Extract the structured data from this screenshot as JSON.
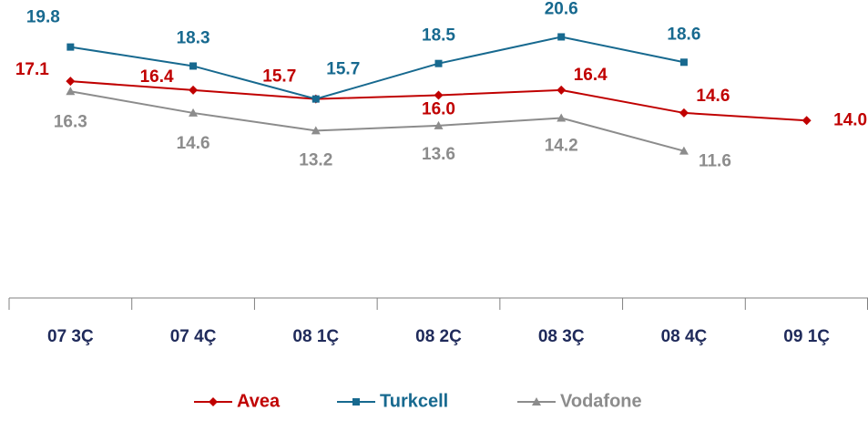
{
  "chart_data": {
    "type": "line",
    "categories": [
      "07 3Ç",
      "07 4Ç",
      "08 1Ç",
      "08 2Ç",
      "08 3Ç",
      "08 4Ç",
      "09 1Ç"
    ],
    "series": [
      {
        "name": "Avea",
        "color": "#c00000",
        "values": [
          17.1,
          16.4,
          15.7,
          16.0,
          16.4,
          14.6,
          14.0
        ],
        "value_labels": [
          "17.1",
          "16.4",
          "15.7",
          "16.0",
          "16.4",
          "14.6",
          "14.0"
        ]
      },
      {
        "name": "Turkcell",
        "color": "#17698f",
        "values": [
          19.8,
          18.3,
          15.7,
          18.5,
          20.6,
          18.6,
          null
        ],
        "value_labels": [
          "19.8",
          "18.3",
          "15.7",
          "18.5",
          "20.6",
          "18.6",
          null
        ]
      },
      {
        "name": "Vodafone",
        "color": "#8c8c8c",
        "values": [
          16.3,
          14.6,
          13.2,
          13.6,
          14.2,
          11.6,
          null
        ],
        "value_labels": [
          "16.3",
          "14.6",
          "13.2",
          "13.6",
          "14.2",
          "11.6",
          null
        ]
      }
    ],
    "ylim": [
      0,
      22
    ],
    "legend": "bottom"
  }
}
